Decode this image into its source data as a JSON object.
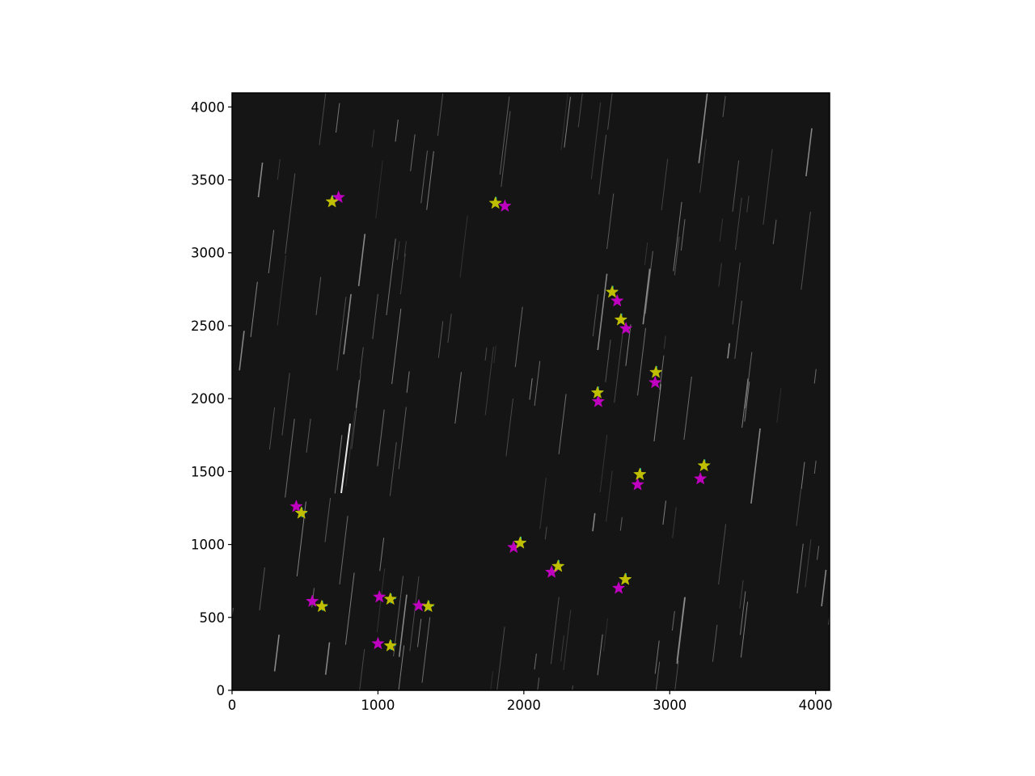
{
  "chart_data": {
    "type": "scatter",
    "title": "",
    "xlabel": "",
    "ylabel": "",
    "xlim": [
      0,
      4096
    ],
    "ylim": [
      0,
      4096
    ],
    "xticks": [
      0,
      1000,
      2000,
      3000,
      4000
    ],
    "yticks": [
      0,
      500,
      1000,
      1500,
      2000,
      2500,
      3000,
      3500,
      4000
    ],
    "grid": false,
    "legend": "none",
    "background": {
      "kind": "star-trail image",
      "color": "#151515",
      "streak_color": "#bdbdbd"
    },
    "series": [
      {
        "marker": "star",
        "color": "#bf00bf",
        "points": [
          [
            730,
            3380
          ],
          [
            1870,
            3320
          ],
          [
            2640,
            2670
          ],
          [
            2700,
            2480
          ],
          [
            2900,
            2110
          ],
          [
            2510,
            1980
          ],
          [
            2780,
            1410
          ],
          [
            3210,
            1450
          ],
          [
            440,
            1260
          ],
          [
            1930,
            980
          ],
          [
            2190,
            810
          ],
          [
            2650,
            700
          ],
          [
            550,
            610
          ],
          [
            1010,
            640
          ],
          [
            1280,
            580
          ],
          [
            1000,
            320
          ]
        ]
      },
      {
        "marker": "plus",
        "color": "#00bfbf",
        "points": [
          [
            690,
            3360
          ],
          [
            1810,
            3350
          ],
          [
            2610,
            2740
          ],
          [
            2670,
            2550
          ],
          [
            2910,
            2190
          ],
          [
            2510,
            2050
          ],
          [
            2800,
            1490
          ],
          [
            3240,
            1550
          ],
          [
            480,
            1220
          ],
          [
            1980,
            1020
          ],
          [
            2240,
            860
          ],
          [
            2700,
            770
          ],
          [
            620,
            580
          ],
          [
            1090,
            630
          ],
          [
            1350,
            580
          ],
          [
            1090,
            310
          ]
        ]
      },
      {
        "marker": "star",
        "color": "#bfbf00",
        "points": [
          [
            685,
            3350
          ],
          [
            1805,
            3340
          ],
          [
            2605,
            2730
          ],
          [
            2665,
            2540
          ],
          [
            2905,
            2180
          ],
          [
            2505,
            2040
          ],
          [
            2795,
            1480
          ],
          [
            3235,
            1540
          ],
          [
            475,
            1215
          ],
          [
            1975,
            1010
          ],
          [
            2235,
            850
          ],
          [
            2695,
            760
          ],
          [
            615,
            575
          ],
          [
            1085,
            625
          ],
          [
            1345,
            575
          ],
          [
            1085,
            305
          ]
        ]
      }
    ]
  }
}
